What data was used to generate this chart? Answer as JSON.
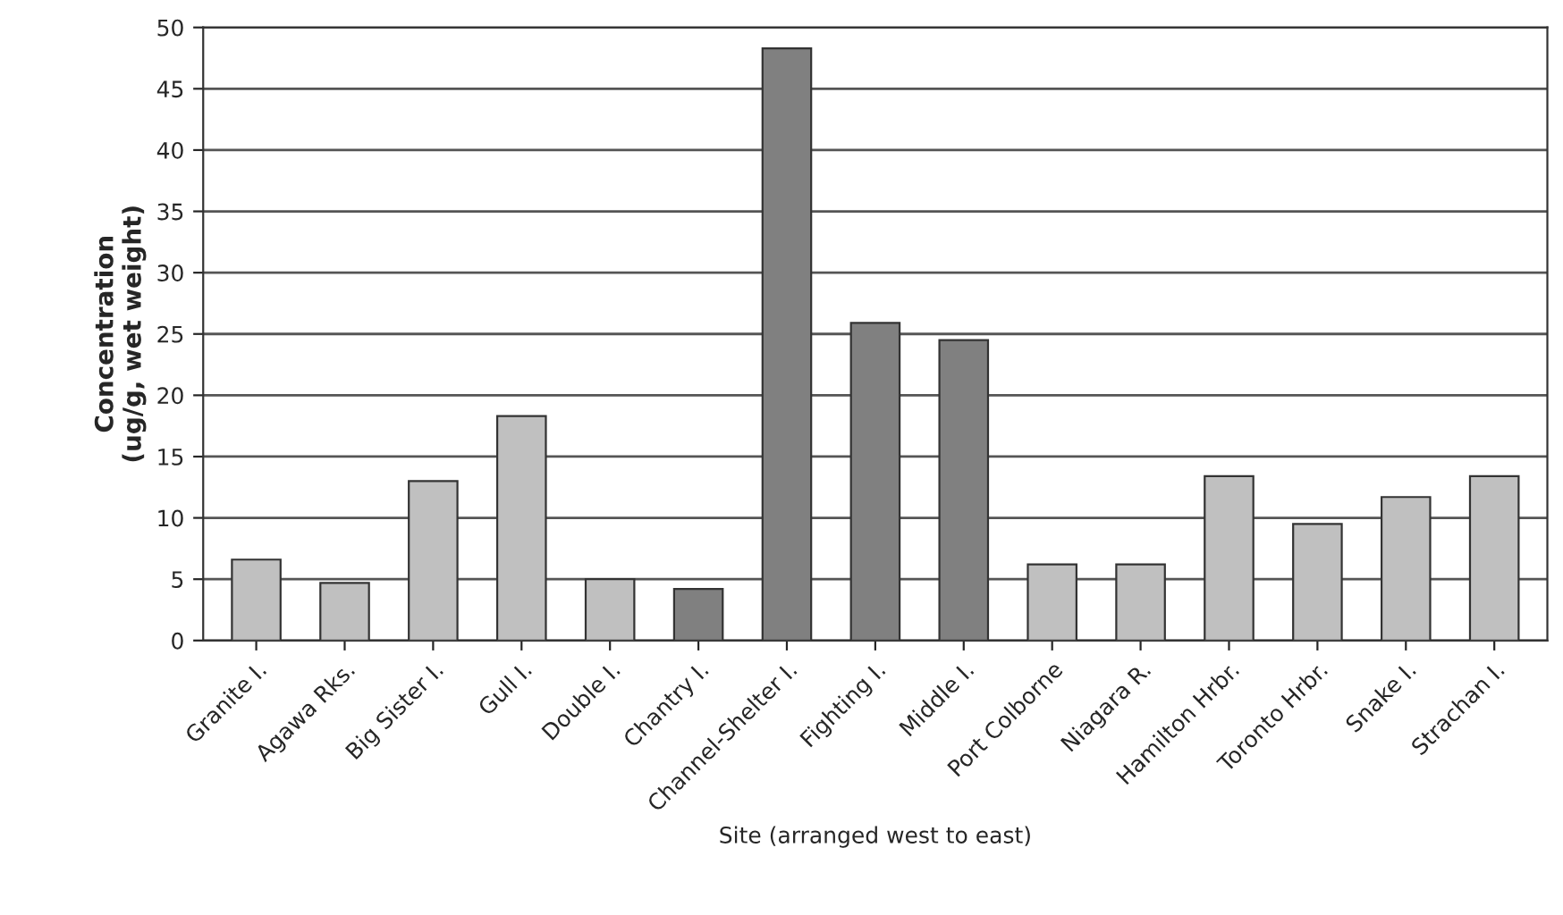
{
  "chart_data": {
    "type": "bar",
    "xlabel": "Site (arranged west to east)",
    "ylabel": "Concentration\n(ug/g, wet weight)",
    "categories": [
      "Granite I.",
      "Agawa Rks.",
      "Big Sister I.",
      "Gull I.",
      "Double I.",
      "Chantry I.",
      "Channel-Shelter I.",
      "Fighting I.",
      "Middle I.",
      "Port Colborne",
      "Niagara R.",
      "Hamilton Hrbr.",
      "Toronto Hrbr.",
      "Snake I.",
      "Strachan I."
    ],
    "values": [
      6.6,
      4.7,
      13.0,
      18.3,
      5.0,
      4.2,
      48.3,
      25.9,
      24.5,
      6.2,
      6.2,
      13.4,
      9.5,
      11.7,
      13.4
    ],
    "colors": [
      "#c0c0c0",
      "#c0c0c0",
      "#c0c0c0",
      "#c0c0c0",
      "#c0c0c0",
      "#808080",
      "#808080",
      "#808080",
      "#808080",
      "#c0c0c0",
      "#c0c0c0",
      "#c0c0c0",
      "#c0c0c0",
      "#c0c0c0",
      "#c0c0c0"
    ],
    "ylim": [
      0,
      50
    ],
    "yticks": [
      0,
      5,
      10,
      15,
      20,
      25,
      30,
      35,
      40,
      45,
      50
    ],
    "grid": "y",
    "legend": false
  }
}
